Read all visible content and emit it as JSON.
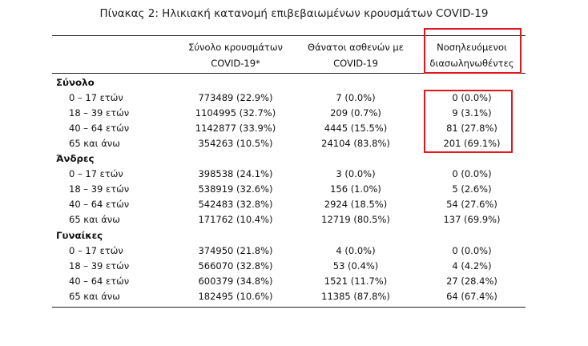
{
  "title": "Πίνακας 2: Ηλικιακή κατανομή επιβεβαιωμένων κρουσμάτων COVID-19",
  "headers": {
    "cases_line1": "Σύνολο κρουσμάτων",
    "cases_line2": "COVID-19*",
    "deaths_line1": "Θάνατοι ασθενών με",
    "deaths_line2": "COVID-19",
    "hosp_line1": "Νοσηλευόμενοι",
    "hosp_line2": "διασωληνωθέντες"
  },
  "highlight_color": "#e0181e",
  "sections": [
    {
      "name": "Σύνολο",
      "rows": [
        {
          "age": "0 – 17 ετών",
          "cases": "773489 (22.9%)",
          "deaths": "7 (0.0%)",
          "hosp": "0 (0.0%)"
        },
        {
          "age": "18 – 39 ετών",
          "cases": "1104995 (32.7%)",
          "deaths": "209 (0.7%)",
          "hosp": "9 (3.1%)"
        },
        {
          "age": "40 – 64 ετών",
          "cases": "1142877 (33.9%)",
          "deaths": "4445 (15.5%)",
          "hosp": "81 (27.8%)"
        },
        {
          "age": "65 και άνω",
          "cases": "354263 (10.5%)",
          "deaths": "24104 (83.8%)",
          "hosp": "201 (69.1%)"
        }
      ]
    },
    {
      "name": "Άνδρες",
      "rows": [
        {
          "age": "0 – 17 ετών",
          "cases": "398538 (24.1%)",
          "deaths": "3 (0.0%)",
          "hosp": "0 (0.0%)"
        },
        {
          "age": "18 – 39 ετών",
          "cases": "538919 (32.6%)",
          "deaths": "156 (1.0%)",
          "hosp": "5 (2.6%)"
        },
        {
          "age": "40 – 64 ετών",
          "cases": "542483 (32.8%)",
          "deaths": "2924 (18.5%)",
          "hosp": "54 (27.6%)"
        },
        {
          "age": "65 και άνω",
          "cases": "171762 (10.4%)",
          "deaths": "12719 (80.5%)",
          "hosp": "137 (69.9%)"
        }
      ]
    },
    {
      "name": "Γυναίκες",
      "rows": [
        {
          "age": "0 – 17 ετών",
          "cases": "374950 (21.8%)",
          "deaths": "4 (0.0%)",
          "hosp": "0 (0.0%)"
        },
        {
          "age": "18 – 39 ετών",
          "cases": "566070 (32.8%)",
          "deaths": "53 (0.4%)",
          "hosp": "4 (4.2%)"
        },
        {
          "age": "40 – 64 ετών",
          "cases": "600379 (34.8%)",
          "deaths": "1521 (11.7%)",
          "hosp": "27 (28.4%)"
        },
        {
          "age": "65 και άνω",
          "cases": "182495 (10.6%)",
          "deaths": "11385 (87.8%)",
          "hosp": "64 (67.4%)"
        }
      ]
    }
  ]
}
